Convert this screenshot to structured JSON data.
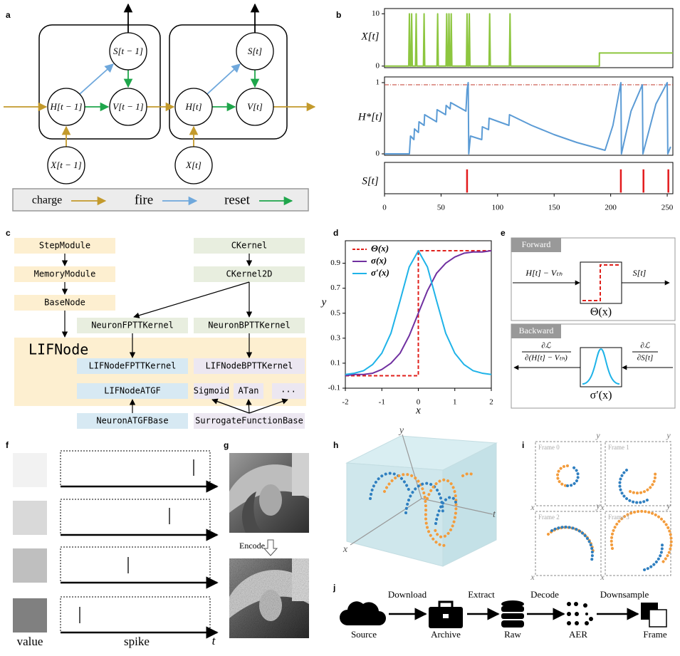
{
  "panel_labels": [
    "a",
    "b",
    "c",
    "d",
    "e",
    "f",
    "g",
    "h",
    "i",
    "j"
  ],
  "neuron_graph": {
    "nodes": [
      "S[t − 1]",
      "H[t − 1]",
      "V[t − 1]",
      "X[t − 1]",
      "S[t]",
      "H[t]",
      "V[t]",
      "X[t]"
    ],
    "legend": [
      "charge",
      "fire",
      "reset"
    ]
  },
  "chart_data": [
    {
      "type": "line",
      "ylabel": "X[t]",
      "xlim": [
        0,
        255
      ],
      "ylim": [
        -0.3,
        11
      ],
      "yticks": [
        0,
        10
      ],
      "series": [
        {
          "color": "#8dc63f",
          "x": [
            0,
            21.4,
            22,
            22.6,
            23.4,
            24,
            24.6,
            27.4,
            28,
            28.6,
            34.4,
            35,
            35.6,
            46.4,
            47,
            47.6,
            54.4,
            55,
            55.6,
            56.4,
            57,
            57.6,
            58.4,
            59,
            59.6,
            72.4,
            73,
            73.6,
            74.4,
            75,
            75.6,
            92.4,
            93,
            93.6,
            110.4,
            111,
            111.6,
            190,
            190,
            255
          ],
          "values": [
            0,
            0,
            10,
            0,
            0,
            10,
            0,
            0,
            10,
            0,
            0,
            10,
            0,
            0,
            10,
            0,
            0,
            10,
            0,
            0,
            10,
            0,
            0,
            10,
            0,
            0,
            10,
            0,
            0,
            10,
            0,
            0,
            10,
            0,
            0,
            10,
            0,
            0,
            2.5,
            2.5
          ]
        }
      ]
    },
    {
      "type": "line",
      "ylabel": "H*[t]",
      "xlim": [
        0,
        255
      ],
      "ylim": [
        -0.02,
        1.08
      ],
      "yticks": [
        0,
        1
      ],
      "threshold": 0.97,
      "threshold_color": "#c0392b",
      "series": [
        {
          "color": "#5b9bd5",
          "x": [
            0,
            22,
            23,
            26,
            26.5,
            30,
            30.5,
            35,
            35.5,
            46,
            46.5,
            54,
            54.5,
            58,
            58.5,
            72,
            73,
            74,
            74.5,
            76,
            86,
            86.5,
            92,
            92.5,
            110,
            110.5,
            130,
            150,
            170,
            195,
            202,
            209,
            209.5,
            218,
            228,
            228.5,
            240,
            250,
            250.5,
            253
          ],
          "values": [
            0,
            0,
            0.25,
            0.2,
            0.35,
            0.3,
            0.45,
            0.4,
            0.55,
            0.45,
            0.62,
            0.55,
            0.68,
            0.63,
            0.72,
            0.6,
            0.9,
            1.0,
            0,
            0.25,
            0.2,
            0.38,
            0.34,
            0.5,
            0.4,
            0.55,
            0.4,
            0.27,
            0.16,
            0.05,
            0.4,
            1.0,
            0,
            0.6,
            0.97,
            0,
            0.7,
            1.0,
            0,
            0.1
          ]
        }
      ]
    },
    {
      "type": "event",
      "ylabel": "S[t]",
      "xlim": [
        0,
        255
      ],
      "ylim": [
        -0.05,
        1.3
      ],
      "xticks": [
        0,
        50,
        100,
        150,
        200,
        250
      ],
      "series": [
        {
          "color": "#e31a1c",
          "x": [
            73,
            209,
            229,
            251
          ],
          "values": [
            1,
            1,
            1,
            1
          ]
        }
      ]
    },
    {
      "type": "line",
      "xlabel": "x",
      "ylabel": "y",
      "xlim": [
        -2,
        2
      ],
      "ylim": [
        -0.1,
        1.08
      ],
      "xticks": [
        -2,
        -1,
        0,
        1,
        2
      ],
      "yticks": [
        -0.1,
        0.1,
        0.3,
        0.5,
        0.7,
        0.9
      ],
      "legend": "upper left",
      "x": [
        -2,
        -1.75,
        -1.5,
        -1.25,
        -1,
        -0.75,
        -0.5,
        -0.25,
        0,
        0.25,
        0.5,
        0.75,
        1,
        1.25,
        1.5,
        1.75,
        2
      ],
      "series": [
        {
          "name": "Θ(x)",
          "color": "#e0201b",
          "dashed": true,
          "x": [
            -2,
            0,
            0,
            2
          ],
          "values": [
            0,
            0,
            1,
            1
          ]
        },
        {
          "name": "σ(x)",
          "color": "#7030a0",
          "values": [
            0,
            0.01,
            0.01,
            0.02,
            0.05,
            0.1,
            0.18,
            0.32,
            0.5,
            0.68,
            0.82,
            0.9,
            0.95,
            0.98,
            0.99,
            0.99,
            1
          ]
        },
        {
          "name": "σ′(x)",
          "color": "#1fb3e8",
          "values": [
            0.01,
            0.02,
            0.04,
            0.09,
            0.18,
            0.34,
            0.6,
            0.87,
            1,
            0.87,
            0.6,
            0.34,
            0.18,
            0.09,
            0.04,
            0.02,
            0.01
          ]
        }
      ]
    }
  ],
  "class_diagram": {
    "boxes": [
      "StepModule",
      "MemoryModule",
      "BaseNode",
      "CKernel",
      "CKernel2D",
      "NeuronFPTTKernel",
      "NeuronBPTTKernel",
      "LIFNode",
      "LIFNodeFPTTKernel",
      "LIFNodeBPTTKernel",
      "LIFNodeATGF",
      "Sigmoid",
      "ATan",
      "...",
      "NeuronATGFBase",
      "SurrogateFunctionBase"
    ]
  },
  "surrogate": {
    "forward": {
      "title": "Forward",
      "input": "H[t] − Vₜₕ",
      "function": "Θ(x)",
      "output": "S[t]"
    },
    "backward": {
      "title": "Backward",
      "grad_out": {
        "numerator": "∂ℒ",
        "denominator": "∂S[t]"
      },
      "grad_in": {
        "numerator": "∂ℒ",
        "denominator": "∂(H[t] − Vₜₕ)"
      },
      "function": "σ′(x)"
    }
  },
  "encoding": {
    "labels": [
      "value",
      "spike",
      "t"
    ]
  },
  "poisson": {
    "label": "Encode"
  },
  "event_3d": {
    "axes": [
      "y",
      "t",
      "x"
    ]
  },
  "frames": [
    {
      "label": "Frame 0",
      "x": "x",
      "y": "y"
    },
    {
      "label": "Frame 1",
      "x": "x",
      "y": "y"
    },
    {
      "label": "Frame 2",
      "x": "x",
      "y": "y"
    },
    {
      "label": "Frame 3",
      "x": "x",
      "y": "y"
    }
  ],
  "pipeline": {
    "nodes": [
      "Source",
      "Archive",
      "Raw",
      "AER",
      "Frame"
    ],
    "steps": [
      "Download",
      "Extract",
      "Decode",
      "Downsample"
    ]
  }
}
